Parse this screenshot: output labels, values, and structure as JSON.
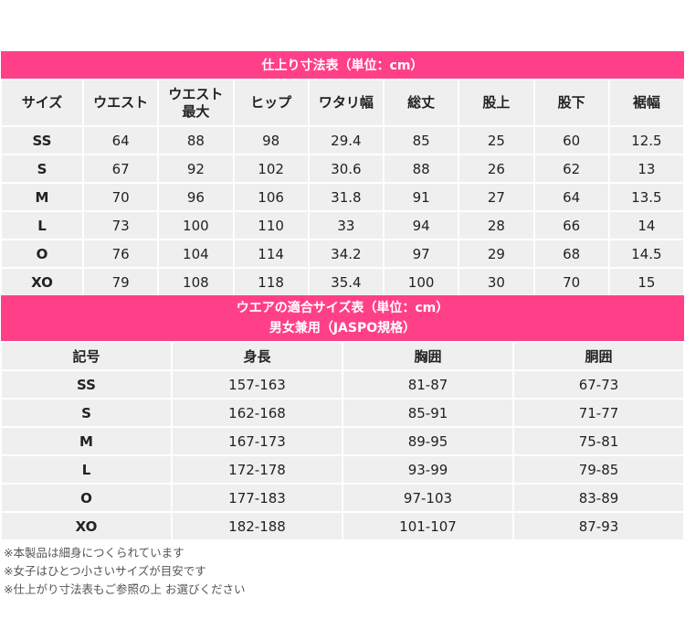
{
  "finished_size_table": {
    "title": "仕上り寸法表（単位：cm）",
    "headers": [
      "サイズ",
      "ウエスト",
      "ウエスト\n最大",
      "ヒップ",
      "ワタリ幅",
      "総丈",
      "股上",
      "股下",
      "裾幅"
    ],
    "rows": [
      [
        "SS",
        "64",
        "88",
        "98",
        "29.4",
        "85",
        "25",
        "60",
        "12.5"
      ],
      [
        "S",
        "67",
        "92",
        "102",
        "30.6",
        "88",
        "26",
        "62",
        "13"
      ],
      [
        "M",
        "70",
        "96",
        "106",
        "31.8",
        "91",
        "27",
        "64",
        "13.5"
      ],
      [
        "L",
        "73",
        "100",
        "110",
        "33",
        "94",
        "28",
        "66",
        "14"
      ],
      [
        "O",
        "76",
        "104",
        "114",
        "34.2",
        "97",
        "29",
        "68",
        "14.5"
      ],
      [
        "XO",
        "79",
        "108",
        "118",
        "35.4",
        "100",
        "30",
        "70",
        "15"
      ]
    ]
  },
  "fit_size_table": {
    "title_line1": "ウエアの適合サイズ表（単位：cm）",
    "title_line2": "男女兼用（JASPO規格）",
    "headers": [
      "記号",
      "身長",
      "胸囲",
      "胴囲"
    ],
    "rows": [
      [
        "SS",
        "157-163",
        "81-87",
        "67-73"
      ],
      [
        "S",
        "162-168",
        "85-91",
        "71-77"
      ],
      [
        "M",
        "167-173",
        "89-95",
        "75-81"
      ],
      [
        "L",
        "172-178",
        "93-99",
        "79-85"
      ],
      [
        "O",
        "177-183",
        "97-103",
        "83-89"
      ],
      [
        "XO",
        "182-188",
        "101-107",
        "87-93"
      ]
    ]
  },
  "notes": [
    "※本製品は細身につくられています",
    "※女子はひとつ小さいサイズが目安です",
    "※仕上がり寸法表もご参照の上 お選びください"
  ],
  "colors": {
    "accent": "#ff4088",
    "cell_bg": "#efefef"
  }
}
